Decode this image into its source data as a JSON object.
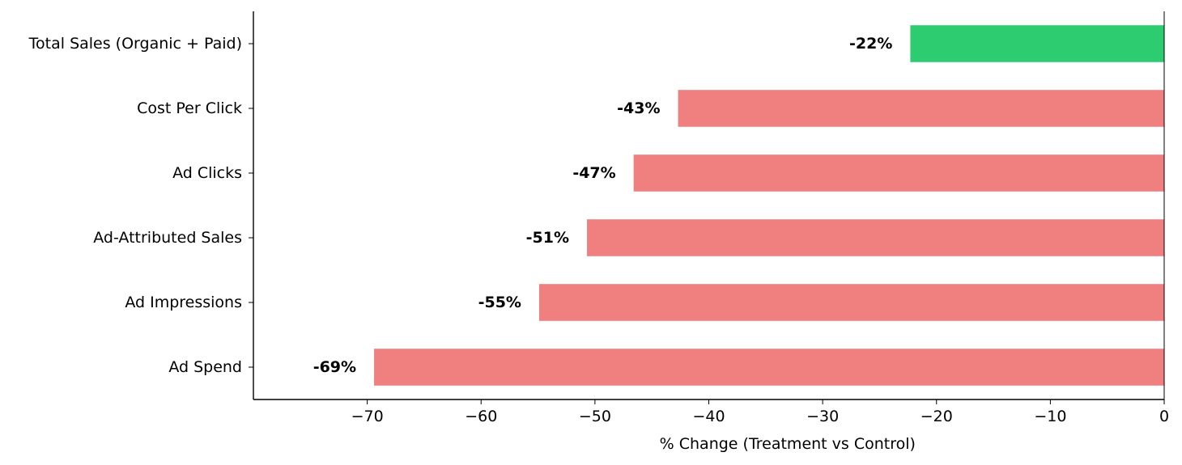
{
  "chart_data": {
    "type": "bar",
    "orientation": "horizontal",
    "title": "",
    "xlabel": "% Change (Treatment vs Control)",
    "ylabel": "",
    "xlim": [
      -80,
      0
    ],
    "xticks": [
      -70,
      -60,
      -50,
      -40,
      -30,
      -20,
      -10,
      0
    ],
    "xtick_labels": [
      "−70",
      "−60",
      "−50",
      "−40",
      "−30",
      "−20",
      "−10",
      "0"
    ],
    "grid": false,
    "legend": "none",
    "categories": [
      "Total Sales (Organic + Paid)",
      "Cost Per Click",
      "Ad Clicks",
      "Ad-Attributed Sales",
      "Ad Impressions",
      "Ad Spend"
    ],
    "values": [
      -22.3,
      -42.7,
      -46.6,
      -50.7,
      -54.9,
      -69.4
    ],
    "data_labels": [
      "-22%",
      "-43%",
      "-47%",
      "-51%",
      "-55%",
      "-69%"
    ],
    "colors": [
      "#2ecc71",
      "#f08080",
      "#f08080",
      "#f08080",
      "#f08080",
      "#f08080"
    ]
  }
}
